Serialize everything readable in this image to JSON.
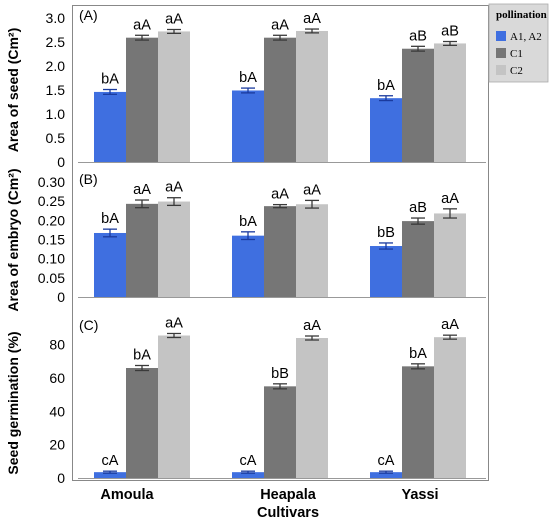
{
  "colors": {
    "A1, A2": "#3f6fe0",
    "C1": "#767676",
    "C2": "#c4c4c4",
    "error_bar": "#222222"
  },
  "legend": {
    "title": "pollination",
    "entries": [
      "A1, A2",
      "C1",
      "C2"
    ]
  },
  "x_axis": {
    "title": "Cultivars",
    "categories": [
      "Amoula",
      "Heapala",
      "Yassi"
    ]
  },
  "chart_data": [
    {
      "type": "bar",
      "panel_letter": "(A)",
      "ylabel": "Area of seed (Cm²)",
      "ylim": [
        0,
        3.0
      ],
      "yticks": [
        "0",
        "0.5",
        "1.0",
        "1.5",
        "2.0",
        "2.5",
        "3.0"
      ],
      "ytick_values": [
        0,
        0.5,
        1.0,
        1.5,
        2.0,
        2.5,
        3.0
      ],
      "categories": [
        "Amoula",
        "Heapala",
        "Yassi"
      ],
      "series": [
        {
          "name": "A1, A2",
          "values": [
            1.46,
            1.49,
            1.33
          ],
          "errors": [
            0.05,
            0.05,
            0.05
          ],
          "labels": [
            "bA",
            "bA",
            "bA"
          ]
        },
        {
          "name": "C1",
          "values": [
            2.59,
            2.59,
            2.36
          ],
          "errors": [
            0.05,
            0.05,
            0.05
          ],
          "labels": [
            "aA",
            "aA",
            "aB"
          ]
        },
        {
          "name": "C2",
          "values": [
            2.72,
            2.73,
            2.47
          ],
          "errors": [
            0.04,
            0.04,
            0.04
          ],
          "labels": [
            "aA",
            "aA",
            "aB"
          ]
        }
      ]
    },
    {
      "type": "bar",
      "panel_letter": "(B)",
      "ylabel": "Area of embryo (Cm²)",
      "ylim": [
        0,
        0.3
      ],
      "yticks": [
        "0",
        "0.05",
        "0.10",
        "0.15",
        "0.20",
        "0.25",
        "0.30"
      ],
      "ytick_values": [
        0,
        0.05,
        0.1,
        0.15,
        0.2,
        0.25,
        0.3
      ],
      "categories": [
        "Amoula",
        "Heapala",
        "Yassi"
      ],
      "series": [
        {
          "name": "A1, A2",
          "values": [
            0.167,
            0.16,
            0.133
          ],
          "errors": [
            0.01,
            0.01,
            0.008
          ],
          "labels": [
            "bA",
            "bA",
            "bB"
          ]
        },
        {
          "name": "C1",
          "values": [
            0.243,
            0.237,
            0.198
          ],
          "errors": [
            0.01,
            0.004,
            0.008
          ],
          "labels": [
            "aA",
            "aA",
            "aB"
          ]
        },
        {
          "name": "C2",
          "values": [
            0.249,
            0.242,
            0.218
          ],
          "errors": [
            0.01,
            0.01,
            0.012
          ],
          "labels": [
            "aA",
            "aA",
            "aA"
          ]
        }
      ]
    },
    {
      "type": "bar",
      "panel_letter": "(C)",
      "ylabel": "Seed germination (%)",
      "ylim": [
        0,
        90
      ],
      "yticks": [
        "0",
        "20",
        "40",
        "60",
        "80"
      ],
      "ytick_values": [
        0,
        20,
        40,
        60,
        80
      ],
      "categories": [
        "Amoula",
        "Heapala",
        "Yassi"
      ],
      "series": [
        {
          "name": "A1, A2",
          "values": [
            3.5,
            3.5,
            3.5
          ],
          "errors": [
            0.6,
            0.6,
            0.6
          ],
          "labels": [
            "cA",
            "cA",
            "cA"
          ]
        },
        {
          "name": "C1",
          "values": [
            66,
            55,
            67
          ],
          "errors": [
            1.5,
            1.5,
            1.5
          ],
          "labels": [
            "bA",
            "bB",
            "bA"
          ]
        },
        {
          "name": "C2",
          "values": [
            85.5,
            84,
            84.5
          ],
          "errors": [
            1.2,
            1.2,
            1.2
          ],
          "labels": [
            "aA",
            "aA",
            "aA"
          ]
        }
      ]
    }
  ]
}
